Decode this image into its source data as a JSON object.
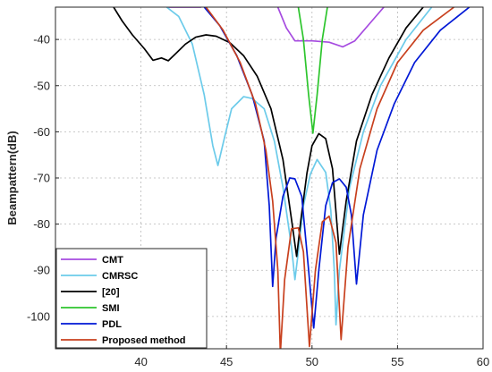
{
  "chart_data": {
    "type": "line",
    "title": "",
    "xlabel": "",
    "ylabel": "Beampattern(dB)",
    "xlim": [
      35,
      60
    ],
    "ylim": [
      -107,
      -33
    ],
    "x_ticks": [
      40,
      45,
      50,
      55,
      60
    ],
    "y_ticks": [
      -40,
      -50,
      -60,
      -70,
      -80,
      -90,
      -100
    ],
    "grid": true,
    "legend_position": "bottom-left",
    "series": [
      {
        "name": "CMT",
        "color": "#a64be0",
        "points": [
          [
            41.5,
            -33
          ],
          [
            43.5,
            -33
          ],
          [
            44.0,
            -30
          ],
          [
            46.0,
            -30
          ],
          [
            47.5,
            -30.5
          ],
          [
            48.0,
            -33
          ],
          [
            48.5,
            -37.5
          ],
          [
            49.0,
            -40.3
          ],
          [
            50.0,
            -40.3
          ],
          [
            51.0,
            -40.6
          ],
          [
            51.8,
            -41.6
          ],
          [
            52.5,
            -40.3
          ],
          [
            53.5,
            -36.0
          ],
          [
            54.2,
            -33
          ]
        ]
      },
      {
        "name": "CMRSC",
        "color": "#6ccbea",
        "points": [
          [
            41.5,
            -33
          ],
          [
            42.2,
            -35
          ],
          [
            43.0,
            -41
          ],
          [
            43.7,
            -52
          ],
          [
            44.2,
            -63
          ],
          [
            44.5,
            -67.3
          ],
          [
            44.9,
            -61
          ],
          [
            45.3,
            -55
          ],
          [
            46.0,
            -52.4
          ],
          [
            46.5,
            -52.8
          ],
          [
            47.2,
            -55
          ],
          [
            47.8,
            -62
          ],
          [
            48.3,
            -72
          ],
          [
            48.8,
            -85
          ],
          [
            49.0,
            -92
          ],
          [
            49.2,
            -86
          ],
          [
            49.5,
            -76
          ],
          [
            49.9,
            -69.2
          ],
          [
            50.3,
            -66
          ],
          [
            50.8,
            -68.8
          ],
          [
            51.1,
            -77
          ],
          [
            51.3,
            -90
          ],
          [
            51.4,
            -101.8
          ],
          [
            51.6,
            -90
          ],
          [
            52.2,
            -72
          ],
          [
            53.0,
            -60
          ],
          [
            54.0,
            -50
          ],
          [
            55.5,
            -40
          ],
          [
            57.0,
            -33
          ]
        ]
      },
      {
        "name": "[20]",
        "color": "#000000",
        "points": [
          [
            38.4,
            -33
          ],
          [
            38.9,
            -36
          ],
          [
            39.5,
            -39
          ],
          [
            40.2,
            -42
          ],
          [
            40.7,
            -44.5
          ],
          [
            41.2,
            -44
          ],
          [
            41.6,
            -44.6
          ],
          [
            42.1,
            -42.8
          ],
          [
            42.6,
            -41
          ],
          [
            43.2,
            -39.5
          ],
          [
            43.8,
            -39.0
          ],
          [
            44.4,
            -39.3
          ],
          [
            45.2,
            -40.7
          ],
          [
            46.0,
            -43.5
          ],
          [
            46.8,
            -48
          ],
          [
            47.6,
            -55
          ],
          [
            48.3,
            -66
          ],
          [
            48.8,
            -79
          ],
          [
            49.1,
            -87
          ],
          [
            49.35,
            -79
          ],
          [
            49.7,
            -69
          ],
          [
            50.0,
            -63
          ],
          [
            50.4,
            -60.4
          ],
          [
            50.8,
            -61.5
          ],
          [
            51.2,
            -68
          ],
          [
            51.6,
            -86.5
          ],
          [
            52.0,
            -75
          ],
          [
            52.6,
            -62
          ],
          [
            53.5,
            -52
          ],
          [
            54.5,
            -44
          ],
          [
            55.5,
            -37.5
          ],
          [
            56.5,
            -33
          ]
        ]
      },
      {
        "name": "SMI",
        "color": "#2dc52d",
        "points": [
          [
            49.2,
            -33
          ],
          [
            49.5,
            -40
          ],
          [
            49.8,
            -52
          ],
          [
            50.05,
            -60.3
          ],
          [
            50.3,
            -52
          ],
          [
            50.6,
            -40
          ],
          [
            50.9,
            -33
          ]
        ]
      },
      {
        "name": "PDL",
        "color": "#0018d6",
        "points": [
          [
            43.7,
            -33
          ],
          [
            44.6,
            -37
          ],
          [
            45.6,
            -43.5
          ],
          [
            46.5,
            -52
          ],
          [
            47.2,
            -62
          ],
          [
            47.5,
            -76
          ],
          [
            47.7,
            -93.5
          ],
          [
            47.9,
            -83
          ],
          [
            48.3,
            -74
          ],
          [
            48.7,
            -70
          ],
          [
            49.0,
            -70.2
          ],
          [
            49.4,
            -74
          ],
          [
            49.8,
            -90
          ],
          [
            50.1,
            -102.5
          ],
          [
            50.4,
            -90
          ],
          [
            50.8,
            -76
          ],
          [
            51.2,
            -71
          ],
          [
            51.6,
            -70.2
          ],
          [
            52.0,
            -72
          ],
          [
            52.3,
            -78
          ],
          [
            52.6,
            -93
          ],
          [
            53.0,
            -78
          ],
          [
            53.8,
            -64
          ],
          [
            54.8,
            -54
          ],
          [
            56.0,
            -45
          ],
          [
            57.5,
            -38
          ],
          [
            59.2,
            -33
          ]
        ]
      },
      {
        "name": "Proposed method",
        "color": "#c8401e",
        "points": [
          [
            43.8,
            -33
          ],
          [
            44.8,
            -38
          ],
          [
            45.8,
            -45
          ],
          [
            46.7,
            -54
          ],
          [
            47.3,
            -64
          ],
          [
            47.7,
            -75
          ],
          [
            48.0,
            -90
          ],
          [
            48.15,
            -108
          ],
          [
            48.4,
            -92
          ],
          [
            48.8,
            -81
          ],
          [
            49.2,
            -80.8
          ],
          [
            49.5,
            -86
          ],
          [
            49.85,
            -106.5
          ],
          [
            50.2,
            -90
          ],
          [
            50.6,
            -79.5
          ],
          [
            51.0,
            -78.3
          ],
          [
            51.4,
            -84
          ],
          [
            51.7,
            -105
          ],
          [
            52.1,
            -85
          ],
          [
            52.8,
            -68
          ],
          [
            53.8,
            -55
          ],
          [
            55.0,
            -45
          ],
          [
            56.5,
            -38
          ],
          [
            58.3,
            -33
          ]
        ]
      }
    ]
  }
}
